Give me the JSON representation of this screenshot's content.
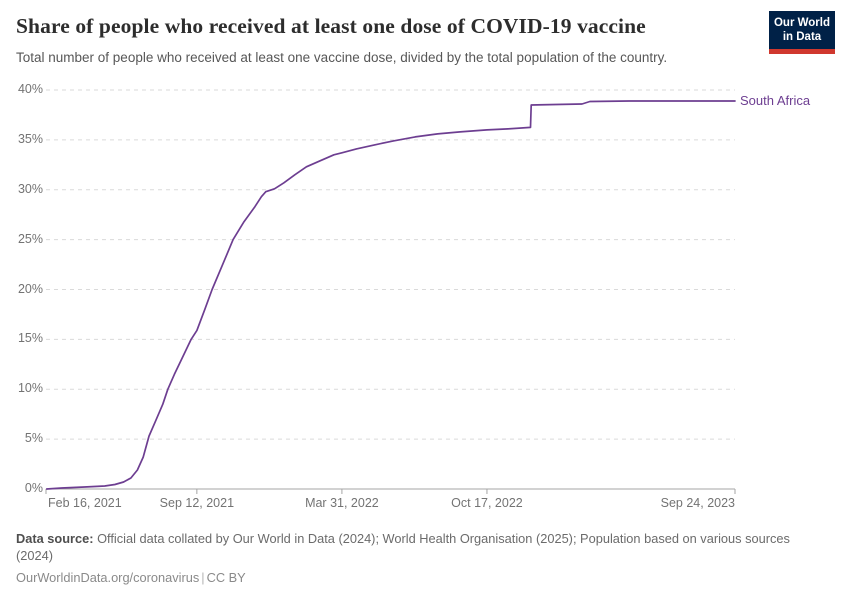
{
  "header": {
    "title": "Share of people who received at least one dose of COVID-19 vaccine",
    "subtitle": "Total number of people who received at least one vaccine dose, divided by the total population of the country.",
    "logo": {
      "line1": "Our World",
      "line2": "in Data",
      "bg_color": "#002147",
      "bar_color": "#d0382e"
    }
  },
  "chart_data": {
    "type": "line",
    "title": "Share of people who received at least one dose of COVID-19 vaccine",
    "line_color": "#6d3e91",
    "grid": "horizontal-dashed",
    "ylim": [
      0,
      40
    ],
    "xlim": [
      "2021-02-16",
      "2023-09-24"
    ],
    "yticks": [
      {
        "value": 0,
        "label": "0%"
      },
      {
        "value": 5,
        "label": "5%"
      },
      {
        "value": 10,
        "label": "10%"
      },
      {
        "value": 15,
        "label": "15%"
      },
      {
        "value": 20,
        "label": "20%"
      },
      {
        "value": 25,
        "label": "25%"
      },
      {
        "value": 30,
        "label": "30%"
      },
      {
        "value": 35,
        "label": "35%"
      },
      {
        "value": 40,
        "label": "40%"
      }
    ],
    "xticks": [
      {
        "date": "2021-02-16",
        "label": "Feb 16, 2021",
        "align": "start"
      },
      {
        "date": "2021-09-12",
        "label": "Sep 12, 2021",
        "align": "middle"
      },
      {
        "date": "2022-03-31",
        "label": "Mar 31, 2022",
        "align": "middle"
      },
      {
        "date": "2022-10-17",
        "label": "Oct 17, 2022",
        "align": "middle"
      },
      {
        "date": "2023-09-24",
        "label": "Sep 24, 2023",
        "align": "end"
      }
    ],
    "series": [
      {
        "name": "South Africa",
        "points": [
          {
            "date": "2021-02-17",
            "value": 0.0
          },
          {
            "date": "2021-03-10",
            "value": 0.1
          },
          {
            "date": "2021-04-10",
            "value": 0.2
          },
          {
            "date": "2021-05-08",
            "value": 0.3
          },
          {
            "date": "2021-05-22",
            "value": 0.45
          },
          {
            "date": "2021-06-03",
            "value": 0.7
          },
          {
            "date": "2021-06-13",
            "value": 1.1
          },
          {
            "date": "2021-06-22",
            "value": 1.9
          },
          {
            "date": "2021-06-30",
            "value": 3.2
          },
          {
            "date": "2021-07-08",
            "value": 5.3
          },
          {
            "date": "2021-07-17",
            "value": 6.8
          },
          {
            "date": "2021-07-27",
            "value": 8.5
          },
          {
            "date": "2021-08-03",
            "value": 10.0
          },
          {
            "date": "2021-08-12",
            "value": 11.5
          },
          {
            "date": "2021-08-22",
            "value": 13.0
          },
          {
            "date": "2021-09-04",
            "value": 15.0
          },
          {
            "date": "2021-09-12",
            "value": 15.9
          },
          {
            "date": "2021-09-23",
            "value": 18.0
          },
          {
            "date": "2021-10-03",
            "value": 20.0
          },
          {
            "date": "2021-10-17",
            "value": 22.4
          },
          {
            "date": "2021-11-01",
            "value": 25.0
          },
          {
            "date": "2021-11-16",
            "value": 26.8
          },
          {
            "date": "2021-12-01",
            "value": 28.3
          },
          {
            "date": "2021-12-10",
            "value": 29.3
          },
          {
            "date": "2021-12-16",
            "value": 29.8
          },
          {
            "date": "2021-12-28",
            "value": 30.1
          },
          {
            "date": "2022-01-10",
            "value": 30.7
          },
          {
            "date": "2022-01-25",
            "value": 31.5
          },
          {
            "date": "2022-02-10",
            "value": 32.3
          },
          {
            "date": "2022-03-01",
            "value": 32.9
          },
          {
            "date": "2022-03-20",
            "value": 33.5
          },
          {
            "date": "2022-03-31",
            "value": 33.7
          },
          {
            "date": "2022-04-20",
            "value": 34.1
          },
          {
            "date": "2022-05-15",
            "value": 34.5
          },
          {
            "date": "2022-06-10",
            "value": 34.9
          },
          {
            "date": "2022-07-10",
            "value": 35.3
          },
          {
            "date": "2022-08-10",
            "value": 35.6
          },
          {
            "date": "2022-09-10",
            "value": 35.8
          },
          {
            "date": "2022-10-17",
            "value": 36.0
          },
          {
            "date": "2022-11-15",
            "value": 36.1
          },
          {
            "date": "2022-12-16",
            "value": 36.25
          },
          {
            "date": "2022-12-17",
            "value": 38.5
          },
          {
            "date": "2023-01-20",
            "value": 38.55
          },
          {
            "date": "2023-02-25",
            "value": 38.6
          },
          {
            "date": "2023-03-08",
            "value": 38.85
          },
          {
            "date": "2023-05-01",
            "value": 38.9
          },
          {
            "date": "2023-07-15",
            "value": 38.9
          },
          {
            "date": "2023-09-24",
            "value": 38.9
          }
        ]
      }
    ]
  },
  "footer": {
    "datasource_label": "Data source:",
    "datasource_text": "Official data collated by Our World in Data (2024); World Health Organisation (2025); Population based on various sources (2024)",
    "link": "OurWorldinData.org/coronavirus",
    "separator": "|",
    "license": "CC BY"
  }
}
